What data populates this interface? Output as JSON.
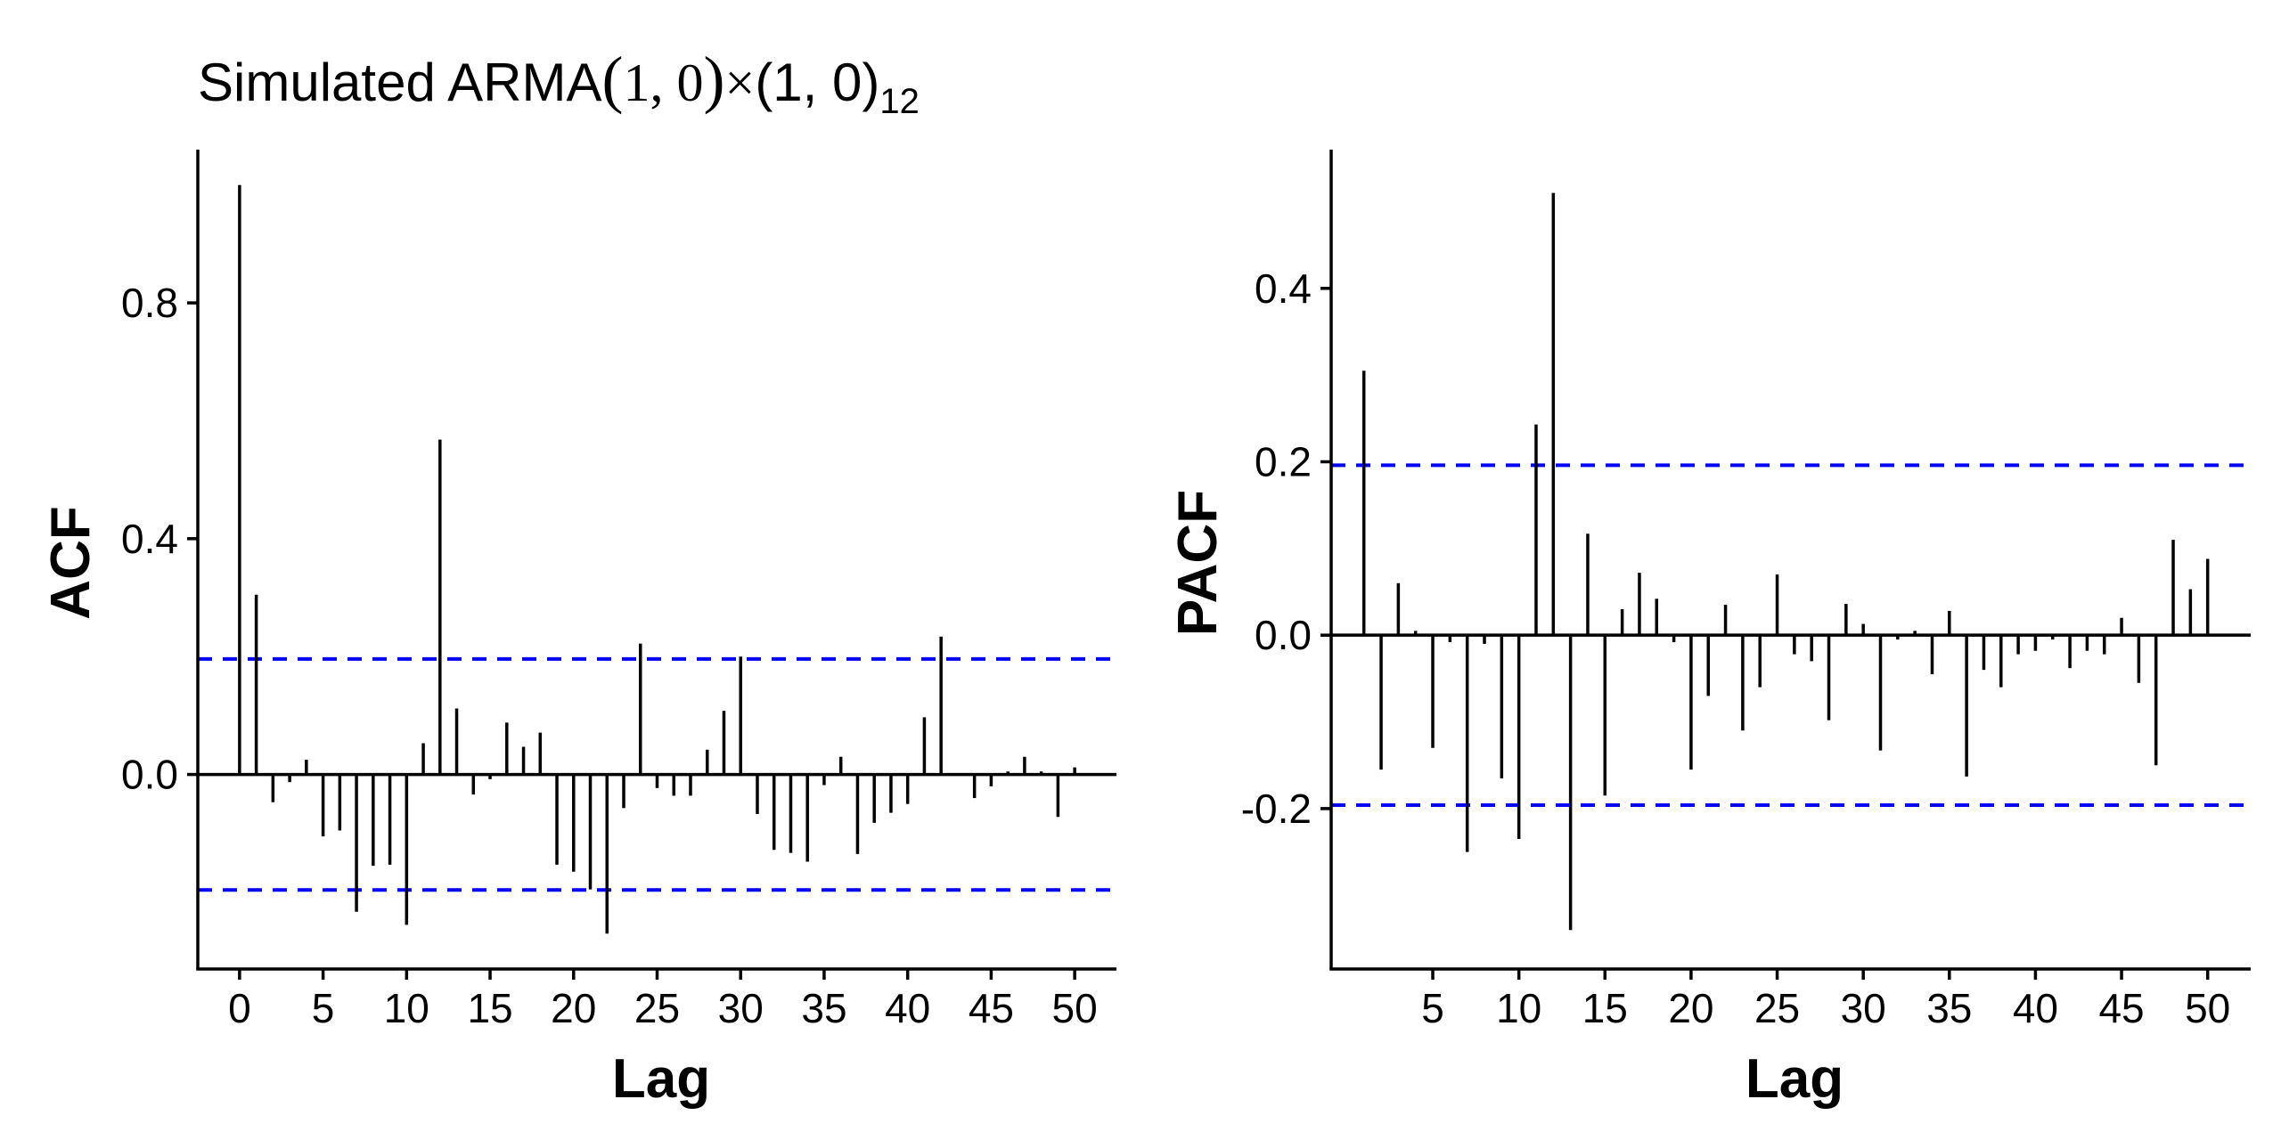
{
  "title": {
    "prefix": "Simulated ARMA",
    "open": "(",
    "args": "1, 0",
    "close": ")",
    "times": "×",
    "seasonal": "(1, 0)",
    "sub": "12"
  },
  "colors": {
    "bars": "#000000",
    "ci": "#0000ff",
    "axes": "#000000"
  },
  "chart_data": [
    {
      "type": "bar",
      "name": "acf",
      "xlabel": "Lag",
      "ylabel": "ACF",
      "xlim": [
        -2.5,
        52.5
      ],
      "ylim": [
        -0.33,
        1.06
      ],
      "xticks": [
        0,
        5,
        10,
        15,
        20,
        25,
        30,
        35,
        40,
        45,
        50
      ],
      "yticks": [
        0.0,
        0.4,
        0.8
      ],
      "ytick_labels": [
        "0.0",
        "0.4",
        "0.8"
      ],
      "ci": [
        0.196,
        -0.196
      ],
      "lags": [
        0,
        1,
        2,
        3,
        4,
        5,
        6,
        7,
        8,
        9,
        10,
        11,
        12,
        13,
        14,
        15,
        16,
        17,
        18,
        19,
        20,
        21,
        22,
        23,
        24,
        25,
        26,
        27,
        28,
        29,
        30,
        31,
        32,
        33,
        34,
        35,
        36,
        37,
        38,
        39,
        40,
        41,
        42,
        43,
        44,
        45,
        46,
        47,
        48,
        49,
        50
      ],
      "values": [
        1.0,
        0.305,
        -0.047,
        -0.013,
        0.025,
        -0.105,
        -0.095,
        -0.233,
        -0.155,
        -0.153,
        -0.255,
        0.053,
        0.568,
        0.112,
        -0.034,
        -0.008,
        0.088,
        0.047,
        0.071,
        -0.153,
        -0.165,
        -0.195,
        -0.27,
        -0.057,
        0.222,
        -0.023,
        -0.036,
        -0.036,
        0.042,
        0.108,
        0.2,
        -0.067,
        -0.128,
        -0.133,
        -0.148,
        -0.018,
        0.03,
        -0.135,
        -0.082,
        -0.065,
        -0.05,
        0.097,
        0.234,
        0.002,
        -0.04,
        -0.02,
        0.005,
        0.03,
        0.005,
        -0.072,
        0.012
      ]
    },
    {
      "type": "bar",
      "name": "pacf",
      "xlabel": "Lag",
      "ylabel": "PACF",
      "xlim": [
        -0.9,
        52.5
      ],
      "ylim": [
        -0.385,
        0.56
      ],
      "xticks": [
        5,
        10,
        15,
        20,
        25,
        30,
        35,
        40,
        45,
        50
      ],
      "yticks": [
        -0.2,
        0.0,
        0.2,
        0.4
      ],
      "ytick_labels": [
        "-0.2",
        "0.0",
        "0.2",
        "0.4"
      ],
      "ci": [
        0.196,
        -0.196
      ],
      "lags": [
        1,
        2,
        3,
        4,
        5,
        6,
        7,
        8,
        9,
        10,
        11,
        12,
        13,
        14,
        15,
        16,
        17,
        18,
        19,
        20,
        21,
        22,
        23,
        24,
        25,
        26,
        27,
        28,
        29,
        30,
        31,
        32,
        33,
        34,
        35,
        36,
        37,
        38,
        39,
        40,
        41,
        42,
        43,
        44,
        45,
        46,
        47,
        48,
        49,
        50
      ],
      "values": [
        0.305,
        -0.155,
        0.06,
        0.005,
        -0.13,
        -0.008,
        -0.25,
        -0.01,
        -0.165,
        -0.235,
        0.243,
        0.51,
        -0.34,
        0.117,
        -0.185,
        0.03,
        0.072,
        0.042,
        -0.008,
        -0.155,
        -0.07,
        0.035,
        -0.11,
        -0.06,
        0.07,
        -0.022,
        -0.03,
        -0.098,
        0.036,
        0.013,
        -0.133,
        -0.005,
        0.005,
        -0.045,
        0.028,
        -0.163,
        -0.04,
        -0.06,
        -0.022,
        -0.018,
        -0.005,
        -0.038,
        -0.018,
        -0.022,
        0.02,
        -0.055,
        -0.15,
        0.11,
        0.053,
        0.088
      ]
    }
  ]
}
